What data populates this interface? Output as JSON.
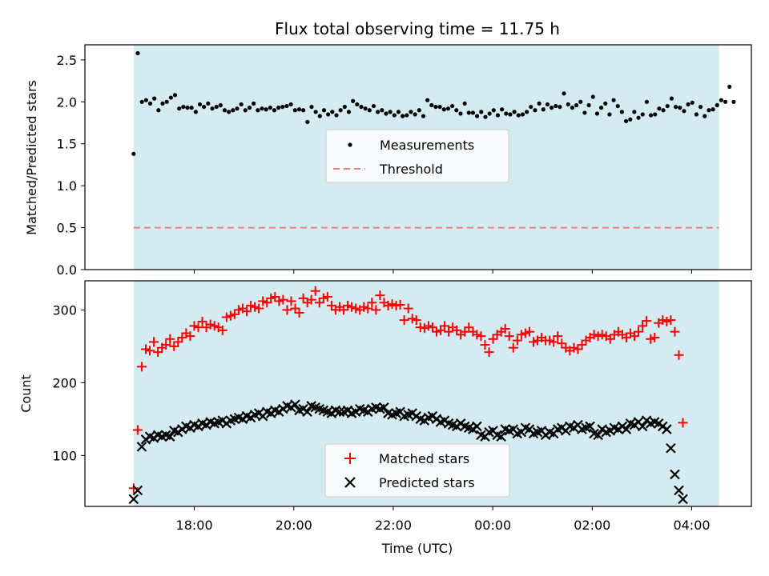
{
  "colors": {
    "night_shade": "#d4ebf1",
    "measurement": "#000000",
    "threshold": "#f08080",
    "matched": "#ff0000",
    "predicted": "#000000"
  },
  "chart_data": [
    {
      "type": "scatter",
      "title": "Flux total observing time = 11.75 h",
      "xlabel": "",
      "ylabel": "Matched/Predicted stars",
      "x_range_hours": [
        15.8,
        29.2
      ],
      "ylim": [
        0,
        2.68
      ],
      "shaded_x_range_hours": [
        16.78,
        28.55
      ],
      "y_ticks": [
        0.0,
        0.5,
        1.0,
        1.5,
        2.0,
        2.5
      ],
      "y_tick_labels": [
        "0.0",
        "0.5",
        "1.0",
        "1.5",
        "2.0",
        "2.5"
      ],
      "legend": {
        "position": "center",
        "entries": [
          "Measurements",
          "Threshold"
        ]
      },
      "threshold": {
        "name": "Threshold",
        "value": 0.5
      },
      "series": [
        {
          "name": "Measurements",
          "marker": "dot",
          "x_start_hours": 16.78,
          "x_step_hours": 0.0832,
          "values": [
            1.38,
            2.58,
            2.0,
            2.02,
            1.98,
            2.04,
            1.9,
            1.98,
            2.0,
            2.05,
            2.08,
            1.92,
            1.94,
            1.93,
            1.93,
            1.88,
            1.97,
            1.94,
            1.98,
            1.92,
            1.94,
            1.96,
            1.9,
            1.88,
            1.9,
            1.92,
            1.97,
            1.9,
            1.93,
            1.98,
            1.9,
            1.92,
            1.91,
            1.93,
            1.9,
            1.93,
            1.94,
            1.95,
            1.97,
            1.9,
            1.91,
            1.9,
            1.76,
            1.94,
            1.88,
            1.83,
            1.9,
            1.85,
            1.88,
            1.84,
            1.9,
            1.94,
            1.88,
            2.01,
            1.97,
            1.94,
            1.92,
            1.9,
            1.95,
            1.88,
            1.9,
            1.86,
            1.88,
            1.84,
            1.88,
            1.83,
            1.84,
            1.88,
            1.85,
            1.9,
            1.83,
            2.02,
            1.96,
            1.94,
            1.94,
            1.91,
            1.92,
            1.95,
            1.9,
            1.86,
            1.98,
            1.87,
            1.87,
            1.83,
            1.88,
            1.82,
            1.86,
            1.9,
            1.84,
            1.91,
            1.86,
            1.85,
            1.88,
            1.84,
            1.85,
            1.88,
            1.94,
            1.9,
            1.98,
            1.91,
            1.97,
            1.93,
            1.95,
            1.94,
            2.1,
            1.97,
            1.93,
            1.96,
            2.0,
            1.87,
            1.96,
            2.06,
            1.86,
            1.93,
            1.98,
            1.85,
            2.02,
            1.95,
            1.88,
            1.77,
            1.79,
            1.88,
            1.81,
            1.85,
            2.0,
            1.84,
            1.85,
            1.92,
            1.9,
            1.95,
            2.04,
            1.94,
            1.93,
            1.89,
            1.97,
            1.99,
            1.85,
            1.94,
            1.83,
            1.9,
            1.91,
            1.96,
            2.02,
            2.0,
            2.18,
            2.0
          ]
        }
      ]
    },
    {
      "type": "scatter",
      "title": "",
      "xlabel": "Time (UTC)",
      "ylabel": "Count",
      "x_range_hours": [
        15.8,
        29.2
      ],
      "ylim": [
        30,
        340
      ],
      "shaded_x_range_hours": [
        16.78,
        28.55
      ],
      "x_ticks_hours": [
        18,
        20,
        22,
        24,
        26,
        28
      ],
      "x_tick_labels": [
        "18:00",
        "20:00",
        "22:00",
        "00:00",
        "02:00",
        "04:00"
      ],
      "y_ticks": [
        100,
        200,
        300
      ],
      "y_tick_labels": [
        "100",
        "200",
        "300"
      ],
      "legend": {
        "position": "lower center",
        "entries": [
          "Matched stars",
          "Predicted stars"
        ]
      },
      "series": [
        {
          "name": "Matched stars",
          "marker": "plus",
          "x_start_hours": 16.78,
          "x_step_hours": 0.0812,
          "values": [
            55,
            135,
            222,
            246,
            244,
            256,
            242,
            248,
            252,
            260,
            250,
            256,
            262,
            268,
            264,
            278,
            276,
            284,
            276,
            280,
            278,
            276,
            272,
            290,
            292,
            294,
            300,
            302,
            298,
            306,
            304,
            302,
            312,
            310,
            316,
            318,
            312,
            314,
            300,
            312,
            302,
            296,
            316,
            310,
            314,
            326,
            310,
            316,
            318,
            306,
            300,
            304,
            300,
            306,
            304,
            302,
            300,
            304,
            302,
            310,
            300,
            320,
            310,
            306,
            308,
            306,
            307,
            286,
            302,
            288,
            286,
            276,
            275,
            278,
            276,
            270,
            272,
            278,
            270,
            276,
            272,
            266,
            270,
            276,
            270,
            266,
            264,
            252,
            242,
            260,
            266,
            270,
            274,
            264,
            248,
            258,
            266,
            268,
            270,
            256,
            258,
            262,
            258,
            258,
            256,
            264,
            254,
            248,
            244,
            248,
            246,
            252,
            258,
            262,
            266,
            264,
            266,
            264,
            260,
            266,
            270,
            266,
            262,
            268,
            264,
            270,
            278,
            285,
            260,
            262,
            282,
            286,
            284,
            286,
            270,
            238,
            145
          ]
        },
        {
          "name": "Predicted stars",
          "marker": "x",
          "x_start_hours": 16.78,
          "x_step_hours": 0.0812,
          "values": [
            40,
            52,
            112,
            122,
            126,
            124,
            128,
            126,
            128,
            126,
            134,
            132,
            136,
            140,
            138,
            142,
            140,
            144,
            142,
            146,
            144,
            146,
            148,
            144,
            148,
            150,
            152,
            150,
            154,
            152,
            156,
            158,
            154,
            160,
            158,
            162,
            160,
            164,
            168,
            166,
            170,
            162,
            164,
            160,
            168,
            166,
            164,
            162,
            160,
            158,
            162,
            160,
            160,
            162,
            158,
            160,
            164,
            162,
            160,
            164,
            166,
            164,
            166,
            158,
            156,
            158,
            160,
            154,
            156,
            158,
            154,
            150,
            148,
            152,
            154,
            150,
            146,
            148,
            144,
            142,
            140,
            144,
            140,
            138,
            136,
            140,
            128,
            126,
            132,
            134,
            128,
            126,
            136,
            134,
            136,
            130,
            132,
            138,
            136,
            130,
            132,
            134,
            128,
            132,
            130,
            136,
            138,
            134,
            140,
            138,
            142,
            136,
            138,
            140,
            130,
            128,
            136,
            132,
            134,
            138,
            136,
            140,
            136,
            144,
            142,
            146,
            140,
            148,
            144,
            146,
            144,
            140,
            136,
            110,
            74,
            52,
            40
          ]
        }
      ]
    }
  ]
}
